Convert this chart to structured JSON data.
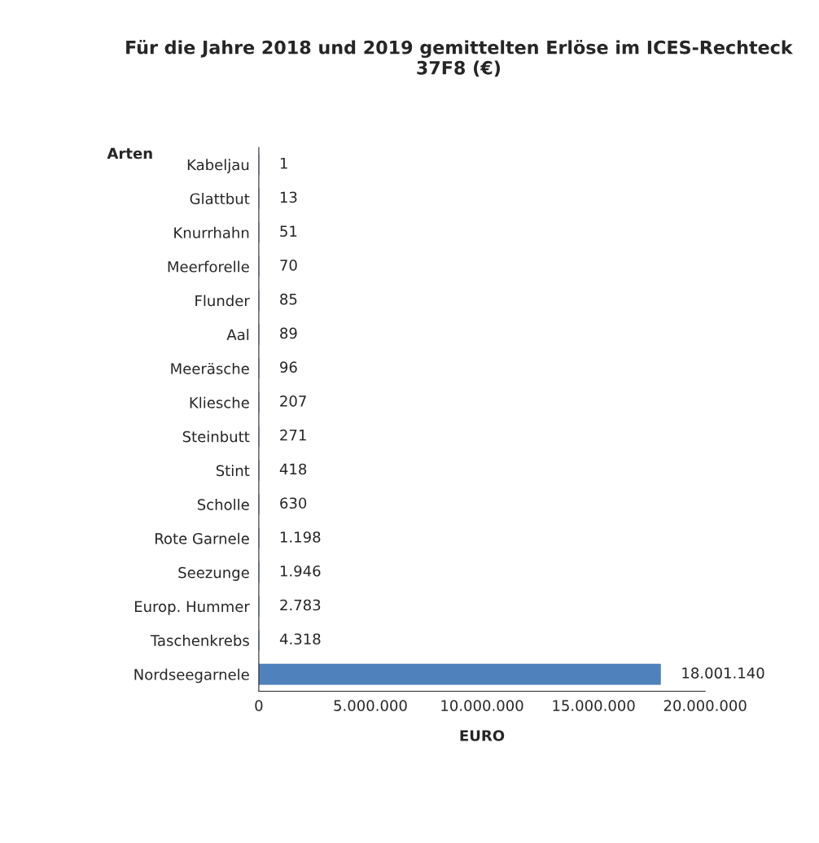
{
  "chart_data": {
    "type": "bar",
    "orientation": "horizontal",
    "title": "Für die Jahre 2018 und 2019 gemittelten Erlöse im ICES-Rechteck 37F8 (€)",
    "xlabel": "EURO",
    "ylabel": "Arten",
    "categories": [
      "Kabeljau",
      "Glattbut",
      "Knurrhahn",
      "Meerforelle",
      "Flunder",
      "Aal",
      "Meeräsche",
      "Kliesche",
      "Steinbutt",
      "Stint",
      "Scholle",
      "Rote Garnele",
      "Seezunge",
      "Europ. Hummer",
      "Taschenkrebs",
      "Nordseegarnele"
    ],
    "values": [
      1,
      13,
      51,
      70,
      85,
      89,
      96,
      207,
      271,
      418,
      630,
      1198,
      1946,
      2783,
      4318,
      18001140
    ],
    "value_labels": [
      "1",
      "13",
      "51",
      "70",
      "85",
      "89",
      "96",
      "207",
      "271",
      "418",
      "630",
      "1.198",
      "1.946",
      "2.783",
      "4.318",
      "18.001.140"
    ],
    "color": "#4f81bd",
    "xlim": [
      0,
      20000000
    ],
    "xticks": [
      0,
      {
        "value": 5000000,
        "label": "5.000.000"
      },
      {
        "value": 10000000,
        "label": "10.000.000"
      },
      {
        "value": 15000000,
        "label": "15.000.000"
      },
      {
        "value": 20000000,
        "label": "20.000.000"
      }
    ],
    "grid": false,
    "legend": false
  }
}
